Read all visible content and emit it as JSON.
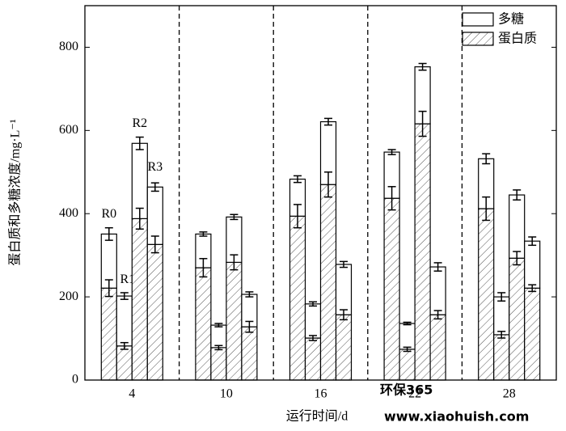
{
  "chart_data": {
    "type": "stacked-bar-error",
    "x_label": "运行时间/d",
    "y_label": "蛋白质和多糖浓度/mg·L⁻¹",
    "categories": [
      "4",
      "10",
      "16",
      "22",
      "28"
    ],
    "bar_labels": [
      "R0",
      "R1",
      "R2",
      "R3"
    ],
    "ylim": [
      0,
      900
    ],
    "yticks": [
      0,
      200,
      400,
      600,
      800
    ],
    "series": [
      {
        "name": "蛋白质",
        "color": "hatch",
        "values": [
          [
            221,
            82,
            388,
            326
          ],
          [
            270,
            78,
            283,
            128
          ],
          [
            394,
            101,
            470,
            157
          ],
          [
            437,
            74,
            616,
            157
          ],
          [
            412,
            109,
            293,
            221
          ]
        ],
        "errors": [
          [
            20,
            8,
            25,
            20
          ],
          [
            22,
            5,
            18,
            13
          ],
          [
            28,
            6,
            30,
            12
          ],
          [
            28,
            5,
            30,
            10
          ],
          [
            28,
            8,
            16,
            8
          ]
        ]
      },
      {
        "name": "多糖",
        "color": "#ffffff",
        "values": [
          [
            130,
            120,
            181,
            138
          ],
          [
            81,
            54,
            109,
            78
          ],
          [
            89,
            82,
            151,
            121
          ],
          [
            111,
            62,
            137,
            115
          ],
          [
            120,
            91,
            152,
            113
          ]
        ],
        "errors": [
          [
            15,
            8,
            15,
            10
          ],
          [
            5,
            4,
            6,
            6
          ],
          [
            8,
            5,
            8,
            7
          ],
          [
            6,
            3,
            8,
            10
          ],
          [
            12,
            10,
            12,
            10
          ]
        ]
      }
    ],
    "watermark": {
      "logo": "环保365",
      "url": "www.xiaohuish.com"
    }
  }
}
